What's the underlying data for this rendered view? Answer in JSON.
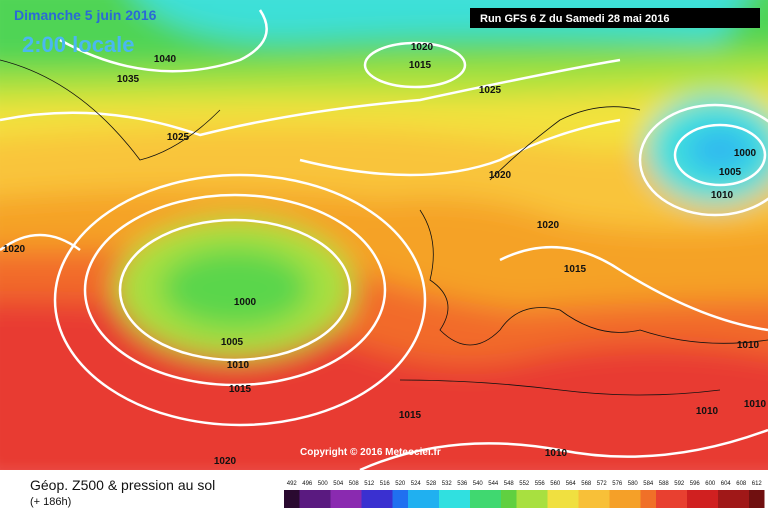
{
  "header": {
    "date": "Dimanche 5 juin 2016",
    "time": "2:00 locale",
    "run": "Run GFS 6 Z du Samedi 28 mai 2016"
  },
  "copyright": "Copyright © 2016 Meteociel.fr",
  "footer": {
    "title": "Géop. Z500 & pression au sol",
    "lead": "(+ 186h)"
  },
  "isobar_labels": [
    "1040",
    "1035",
    "1020",
    "1015",
    "1025",
    "1025",
    "1020",
    "1020",
    "1000",
    "1005",
    "1010",
    "1020",
    "1015",
    "1000",
    "1005",
    "1010",
    "1015",
    "1010",
    "1015",
    "1010",
    "1010",
    "1020",
    "1010"
  ],
  "scale_labels": [
    "492",
    "496",
    "500",
    "504",
    "508",
    "512",
    "516",
    "520",
    "524",
    "528",
    "532",
    "536",
    "540",
    "544",
    "548",
    "552",
    "556",
    "560",
    "564",
    "568",
    "572",
    "576",
    "580",
    "584",
    "588",
    "592",
    "596",
    "600",
    "604",
    "608",
    "612"
  ]
}
